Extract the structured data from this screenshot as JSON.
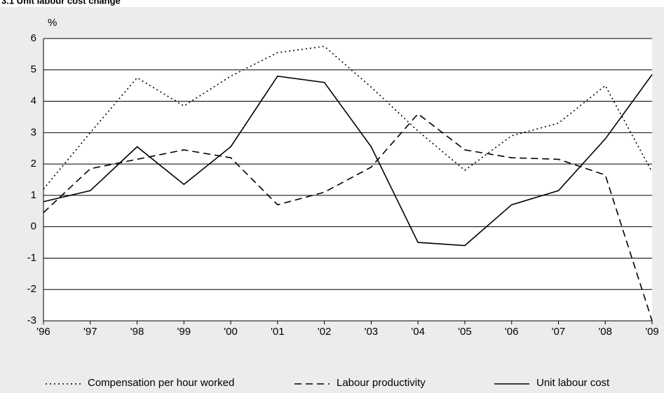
{
  "chart_data": {
    "type": "line",
    "title": "3.1 Unit labour cost change",
    "y_label": "%",
    "categories": [
      "'96",
      "'97",
      "'98",
      "'99",
      "'00",
      "'01",
      "'02",
      "'03",
      "'04",
      "'05",
      "'06",
      "'07",
      "'08",
      "'09"
    ],
    "series": [
      {
        "name": "Compensation per hour worked",
        "color": "#000000",
        "dash": "dotted",
        "values": [
          1.2,
          3.0,
          4.75,
          3.85,
          4.8,
          5.55,
          5.75,
          4.45,
          3.05,
          1.8,
          2.9,
          3.3,
          4.5,
          1.75
        ]
      },
      {
        "name": "Labour productivity",
        "color": "#000000",
        "dash": "dashed",
        "values": [
          0.45,
          1.85,
          2.15,
          2.45,
          2.2,
          0.7,
          1.1,
          1.9,
          3.6,
          2.45,
          2.2,
          2.15,
          1.65,
          -3.0
        ]
      },
      {
        "name": "Unit labour cost",
        "color": "#000000",
        "dash": "solid",
        "values": [
          0.8,
          1.15,
          2.55,
          1.35,
          2.55,
          4.8,
          4.6,
          2.55,
          -0.5,
          -0.6,
          0.7,
          1.15,
          2.8,
          4.85
        ]
      }
    ],
    "ylim": [
      -3,
      6
    ],
    "yticks": [
      -3,
      -2,
      -1,
      0,
      1,
      2,
      3,
      4,
      5,
      6
    ],
    "grid": true
  }
}
